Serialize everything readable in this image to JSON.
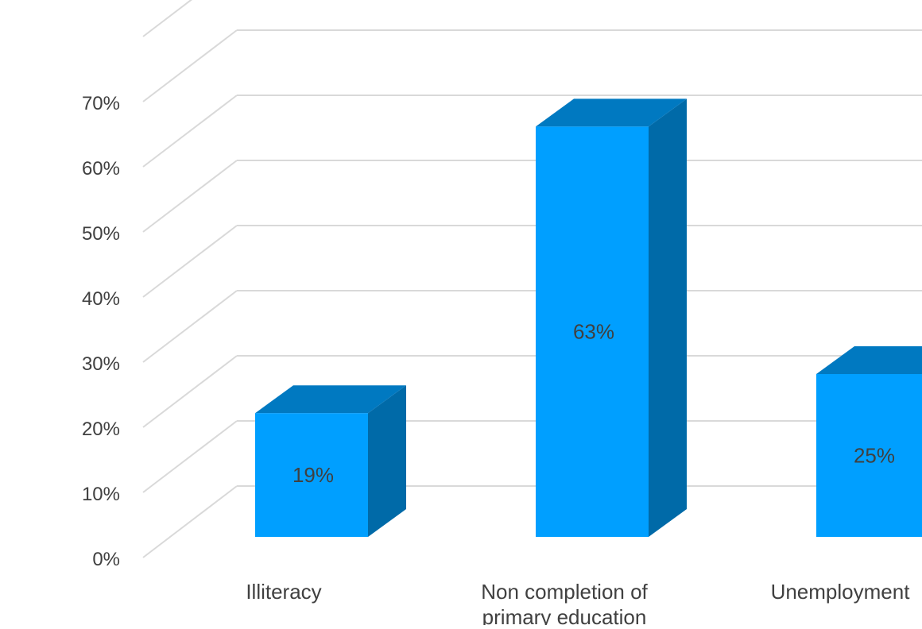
{
  "chart_data": {
    "type": "bar",
    "title": "",
    "xlabel": "",
    "ylabel": "",
    "categories": [
      "Illiteracy",
      "Non completion of primary education",
      "Unemployment"
    ],
    "values": [
      19,
      63,
      25
    ],
    "data_labels": [
      "19%",
      "63%",
      "25%"
    ],
    "ylim": [
      0,
      70
    ],
    "y_ticks": [
      "0%",
      "10%",
      "20%",
      "30%",
      "40%",
      "50%",
      "60%",
      "70%"
    ],
    "grid": true,
    "style": "3d-column",
    "colors": {
      "front": "#009fff",
      "top": "#0079c1",
      "side": "#006aa8",
      "grid": "#d9d9d9",
      "text": "#404040"
    }
  }
}
